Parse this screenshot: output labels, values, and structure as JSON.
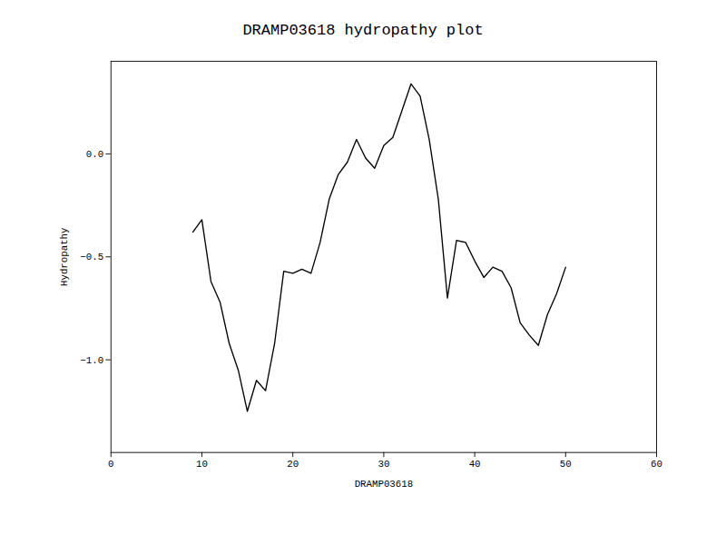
{
  "chart_data": {
    "type": "line",
    "title": "DRAMP03618 hydropathy plot",
    "xlabel": "DRAMP03618",
    "ylabel": "Hydropathy",
    "x": [
      9,
      10,
      11,
      12,
      13,
      14,
      15,
      16,
      17,
      18,
      19,
      20,
      21,
      22,
      23,
      24,
      25,
      26,
      27,
      28,
      29,
      30,
      31,
      32,
      33,
      34,
      35,
      36,
      37,
      38,
      39,
      40,
      41,
      42,
      43,
      44,
      45,
      46,
      47,
      48,
      49,
      50
    ],
    "values": [
      -0.38,
      -0.32,
      -0.62,
      -0.72,
      -0.92,
      -1.05,
      -1.25,
      -1.1,
      -1.15,
      -0.92,
      -0.57,
      -0.58,
      -0.56,
      -0.58,
      -0.43,
      -0.22,
      -0.1,
      -0.04,
      0.07,
      -0.02,
      -0.07,
      0.04,
      0.08,
      0.21,
      0.34,
      0.28,
      0.07,
      -0.22,
      -0.7,
      -0.42,
      -0.43,
      -0.52,
      -0.6,
      -0.55,
      -0.57,
      -0.65,
      -0.82,
      -0.88,
      -0.93,
      -0.78,
      -0.68,
      -0.55
    ],
    "color": "#000000",
    "xlim": [
      0,
      60
    ],
    "ylim": [
      -1.45,
      0.45
    ],
    "xticks": [
      0,
      10,
      20,
      30,
      40,
      50,
      60
    ],
    "yticks": [
      {
        "value": -1.0,
        "label": "−1.0"
      },
      {
        "value": -0.5,
        "label": "−0.5"
      },
      {
        "value": 0.0,
        "label": "0.0"
      }
    ],
    "grid": false
  }
}
